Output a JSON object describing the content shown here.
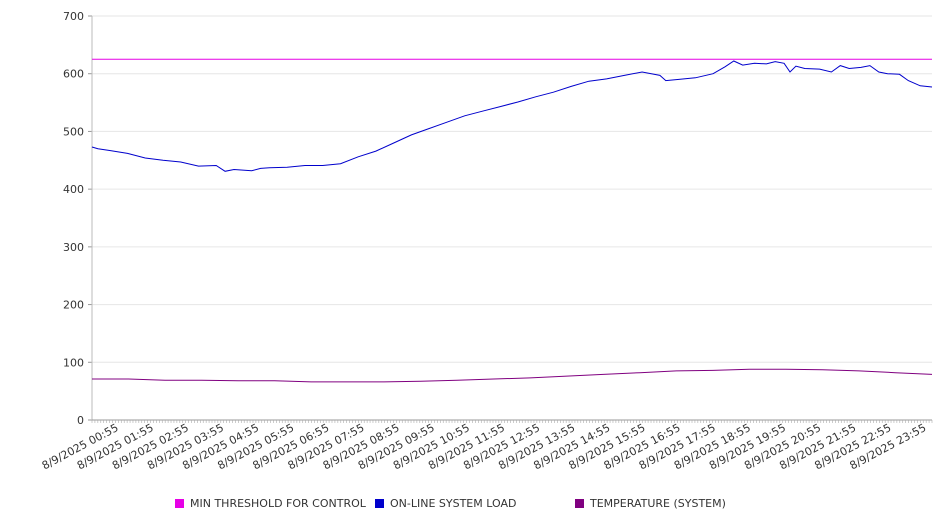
{
  "chart_data": {
    "type": "line",
    "title": "",
    "xlabel": "",
    "ylabel": "",
    "ylim": [
      0,
      700
    ],
    "yticks": [
      0,
      100,
      200,
      300,
      400,
      500,
      600,
      700
    ],
    "grid": true,
    "legend_position": "bottom",
    "x_tick_labels": [
      "8/9/2025 00:55",
      "8/9/2025 01:55",
      "8/9/2025 02:55",
      "8/9/2025 03:55",
      "8/9/2025 04:55",
      "8/9/2025 05:55",
      "8/9/2025 06:55",
      "8/9/2025 07:55",
      "8/9/2025 08:55",
      "8/9/2025 09:55",
      "8/9/2025 10:55",
      "8/9/2025 11:55",
      "8/9/2025 12:55",
      "8/9/2025 13:55",
      "8/9/2025 14:55",
      "8/9/2025 15:55",
      "8/9/2025 16:55",
      "8/9/2025 17:55",
      "8/9/2025 18:55",
      "8/9/2025 19:55",
      "8/9/2025 20:55",
      "8/9/2025 21:55",
      "8/9/2025 22:55",
      "8/9/2025 23:55"
    ],
    "x_range": [
      "8/9/2025 00:00",
      "8/9/2025 23:55"
    ],
    "x_interval_minutes": 5,
    "series": [
      {
        "name": "MIN THRESHOLD FOR CONTROL",
        "color": "#e600e6",
        "points": [
          [
            "8/9/2025 00:00",
            625
          ],
          [
            "8/9/2025 23:55",
            625
          ]
        ]
      },
      {
        "name": "ON-LINE SYSTEM LOAD",
        "color": "#0000cc",
        "points": [
          [
            "8/9/2025 00:00",
            473
          ],
          [
            "8/9/2025 00:10",
            470
          ],
          [
            "8/9/2025 00:30",
            467
          ],
          [
            "8/9/2025 01:00",
            462
          ],
          [
            "8/9/2025 01:30",
            454
          ],
          [
            "8/9/2025 02:00",
            450
          ],
          [
            "8/9/2025 02:30",
            447
          ],
          [
            "8/9/2025 03:00",
            440
          ],
          [
            "8/9/2025 03:30",
            441
          ],
          [
            "8/9/2025 03:45",
            431
          ],
          [
            "8/9/2025 04:00",
            434
          ],
          [
            "8/9/2025 04:30",
            432
          ],
          [
            "8/9/2025 04:45",
            436
          ],
          [
            "8/9/2025 05:00",
            437
          ],
          [
            "8/9/2025 05:30",
            438
          ],
          [
            "8/9/2025 06:00",
            441
          ],
          [
            "8/9/2025 06:30",
            441
          ],
          [
            "8/9/2025 07:00",
            444
          ],
          [
            "8/9/2025 07:30",
            456
          ],
          [
            "8/9/2025 08:00",
            466
          ],
          [
            "8/9/2025 08:30",
            480
          ],
          [
            "8/9/2025 09:00",
            494
          ],
          [
            "8/9/2025 09:30",
            505
          ],
          [
            "8/9/2025 10:00",
            516
          ],
          [
            "8/9/2025 10:30",
            527
          ],
          [
            "8/9/2025 11:00",
            535
          ],
          [
            "8/9/2025 11:30",
            543
          ],
          [
            "8/9/2025 12:00",
            551
          ],
          [
            "8/9/2025 12:30",
            560
          ],
          [
            "8/9/2025 13:00",
            568
          ],
          [
            "8/9/2025 13:30",
            578
          ],
          [
            "8/9/2025 14:00",
            587
          ],
          [
            "8/9/2025 14:30",
            591
          ],
          [
            "8/9/2025 15:00",
            597
          ],
          [
            "8/9/2025 15:30",
            603
          ],
          [
            "8/9/2025 16:00",
            597
          ],
          [
            "8/9/2025 16:10",
            588
          ],
          [
            "8/9/2025 16:30",
            590
          ],
          [
            "8/9/2025 17:00",
            593
          ],
          [
            "8/9/2025 17:30",
            600
          ],
          [
            "8/9/2025 17:50",
            612
          ],
          [
            "8/9/2025 18:05",
            622
          ],
          [
            "8/9/2025 18:20",
            615
          ],
          [
            "8/9/2025 18:40",
            618
          ],
          [
            "8/9/2025 19:00",
            617
          ],
          [
            "8/9/2025 19:15",
            621
          ],
          [
            "8/9/2025 19:30",
            618
          ],
          [
            "8/9/2025 19:40",
            603
          ],
          [
            "8/9/2025 19:50",
            613
          ],
          [
            "8/9/2025 20:05",
            609
          ],
          [
            "8/9/2025 20:30",
            608
          ],
          [
            "8/9/2025 20:50",
            603
          ],
          [
            "8/9/2025 21:05",
            614
          ],
          [
            "8/9/2025 21:20",
            609
          ],
          [
            "8/9/2025 21:40",
            611
          ],
          [
            "8/9/2025 21:55",
            614
          ],
          [
            "8/9/2025 22:10",
            603
          ],
          [
            "8/9/2025 22:25",
            600
          ],
          [
            "8/9/2025 22:45",
            599
          ],
          [
            "8/9/2025 23:00",
            588
          ],
          [
            "8/9/2025 23:20",
            579
          ],
          [
            "8/9/2025 23:40",
            577
          ]
        ]
      },
      {
        "name": "TEMPERATURE (SYSTEM)",
        "color": "#800080",
        "points": [
          [
            "8/9/2025 00:00",
            71
          ],
          [
            "8/9/2025 01:00",
            71
          ],
          [
            "8/9/2025 02:00",
            69
          ],
          [
            "8/9/2025 03:00",
            69
          ],
          [
            "8/9/2025 04:00",
            68
          ],
          [
            "8/9/2025 05:00",
            68
          ],
          [
            "8/9/2025 06:00",
            66
          ],
          [
            "8/9/2025 07:00",
            66
          ],
          [
            "8/9/2025 08:00",
            66
          ],
          [
            "8/9/2025 09:00",
            67
          ],
          [
            "8/9/2025 10:00",
            69
          ],
          [
            "8/9/2025 11:00",
            71
          ],
          [
            "8/9/2025 12:00",
            73
          ],
          [
            "8/9/2025 13:00",
            76
          ],
          [
            "8/9/2025 14:00",
            79
          ],
          [
            "8/9/2025 15:00",
            82
          ],
          [
            "8/9/2025 16:00",
            85
          ],
          [
            "8/9/2025 17:00",
            86
          ],
          [
            "8/9/2025 18:00",
            88
          ],
          [
            "8/9/2025 19:00",
            88
          ],
          [
            "8/9/2025 20:00",
            87
          ],
          [
            "8/9/2025 21:00",
            85
          ],
          [
            "8/9/2025 22:00",
            82
          ],
          [
            "8/9/2025 23:00",
            79
          ]
        ]
      }
    ],
    "extended_load_tail": [
      [
        "8/9/2025 23:55",
        576
      ]
    ]
  }
}
